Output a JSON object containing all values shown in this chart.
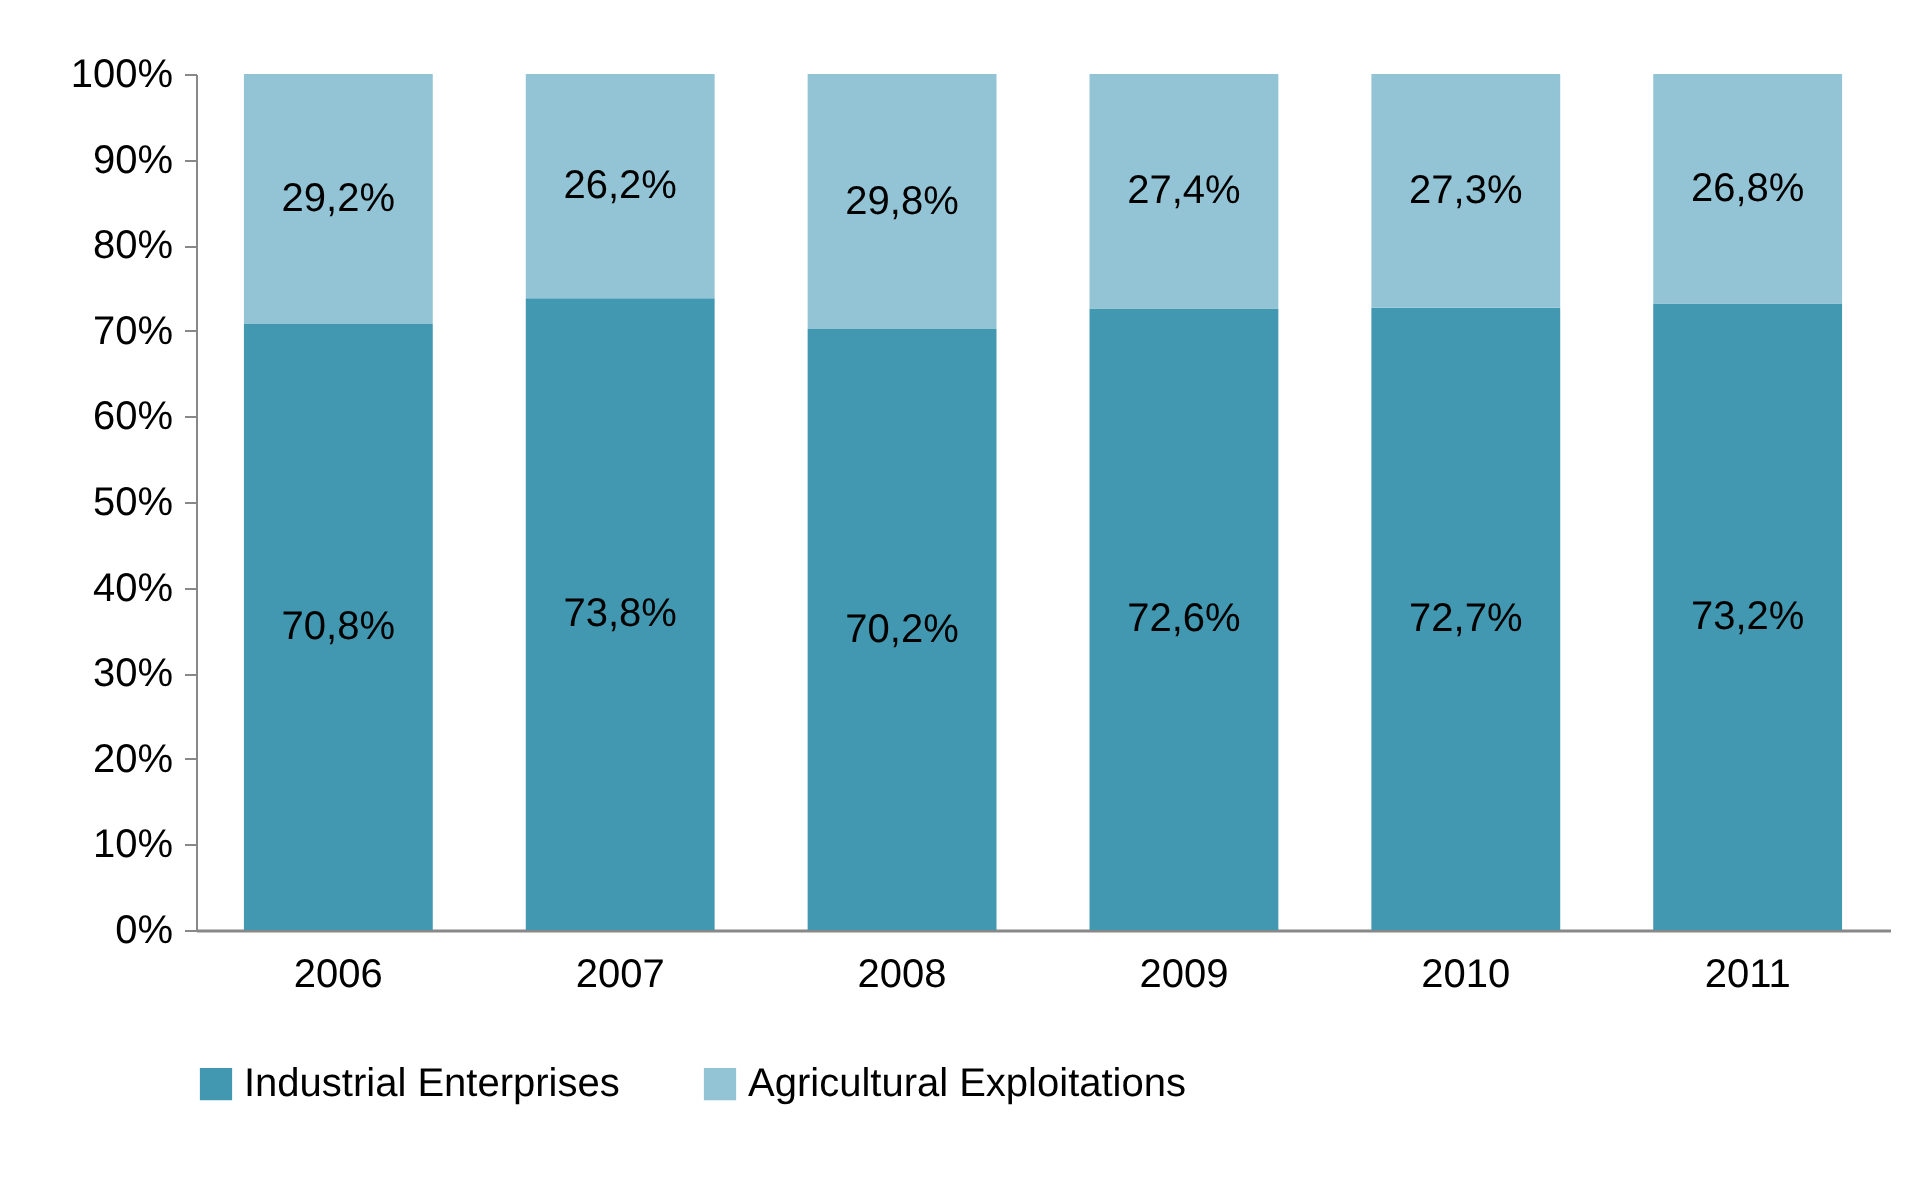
{
  "chart_data": {
    "type": "bar",
    "stacked": true,
    "categories": [
      "2006",
      "2007",
      "2008",
      "2009",
      "2010",
      "2011"
    ],
    "series": [
      {
        "name": "Industrial Enterprises",
        "color": "#4298b0",
        "values": [
          70.8,
          73.8,
          70.2,
          72.6,
          72.7,
          73.2
        ],
        "value_labels": [
          "70,8%",
          "73,8%",
          "70,2%",
          "72,6%",
          "72,7%",
          "73,2%"
        ]
      },
      {
        "name": "Agricultural Exploitations",
        "color": "#93c4d5",
        "values": [
          29.2,
          26.2,
          29.8,
          27.4,
          27.3,
          26.8
        ],
        "value_labels": [
          "29,2%",
          "26,2%",
          "29,8%",
          "27,4%",
          "27,3%",
          "26,8%"
        ]
      }
    ],
    "ylim": [
      0,
      100
    ],
    "yticks": [
      {
        "value": 0,
        "label": "0%"
      },
      {
        "value": 10,
        "label": "10%"
      },
      {
        "value": 20,
        "label": "20%"
      },
      {
        "value": 30,
        "label": "30%"
      },
      {
        "value": 40,
        "label": "40%"
      },
      {
        "value": 50,
        "label": "50%"
      },
      {
        "value": 60,
        "label": "60%"
      },
      {
        "value": 70,
        "label": "70%"
      },
      {
        "value": 80,
        "label": "80%"
      },
      {
        "value": 90,
        "label": "90%"
      },
      {
        "value": 100,
        "label": "100%"
      }
    ],
    "grid": false,
    "legend": "bottom"
  }
}
